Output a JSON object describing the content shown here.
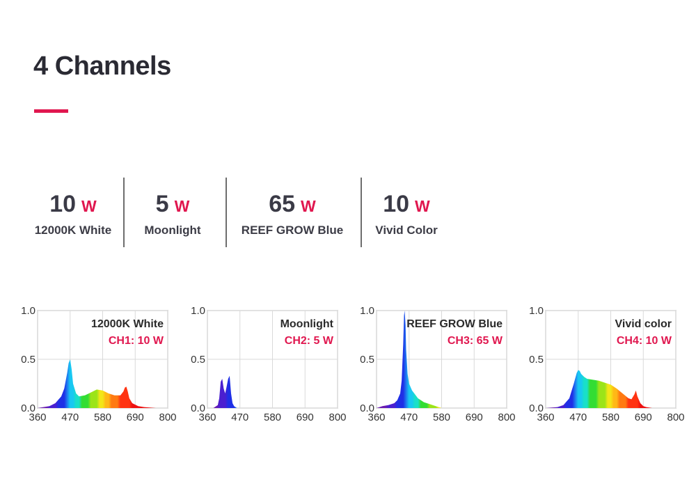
{
  "header": {
    "title": "4 Channels",
    "accent_color": "#e0174f"
  },
  "stats": [
    {
      "value": "10",
      "unit": "W",
      "label": "12000K White"
    },
    {
      "value": "5",
      "unit": "W",
      "label": "Moonlight"
    },
    {
      "value": "65",
      "unit": "W",
      "label": "REEF GROW Blue"
    },
    {
      "value": "10",
      "unit": "W",
      "label": "Vivid Color"
    }
  ],
  "chart_data": [
    {
      "type": "area",
      "title": "12000K White",
      "subtitle": "CH1: 10 W",
      "xlabel": "",
      "ylabel": "",
      "xlim": [
        360,
        800
      ],
      "ylim": [
        0,
        1
      ],
      "x_ticks": [
        "360",
        "470",
        "580",
        "690",
        "800"
      ],
      "y_ticks": [
        "0.0",
        "0.5",
        "1.0"
      ],
      "grid": true,
      "x": [
        360,
        380,
        400,
        420,
        440,
        450,
        460,
        465,
        470,
        475,
        480,
        490,
        500,
        520,
        540,
        560,
        580,
        600,
        620,
        640,
        650,
        655,
        660,
        665,
        670,
        680,
        700,
        720,
        760,
        800
      ],
      "y": [
        0.0,
        0.01,
        0.02,
        0.05,
        0.12,
        0.2,
        0.36,
        0.46,
        0.5,
        0.4,
        0.25,
        0.15,
        0.12,
        0.13,
        0.16,
        0.19,
        0.18,
        0.15,
        0.13,
        0.13,
        0.17,
        0.21,
        0.22,
        0.17,
        0.1,
        0.05,
        0.02,
        0.01,
        0.0,
        0.0
      ]
    },
    {
      "type": "area",
      "title": "Moonlight",
      "subtitle": "CH2: 5 W",
      "xlabel": "",
      "ylabel": "",
      "xlim": [
        360,
        800
      ],
      "ylim": [
        0,
        1
      ],
      "x_ticks": [
        "360",
        "470",
        "580",
        "690",
        "800"
      ],
      "y_ticks": [
        "0.0",
        "0.5",
        "1.0"
      ],
      "grid": true,
      "x": [
        360,
        380,
        395,
        400,
        405,
        410,
        415,
        420,
        425,
        430,
        435,
        440,
        445,
        450,
        460,
        480,
        800
      ],
      "y": [
        0.0,
        0.0,
        0.03,
        0.1,
        0.27,
        0.3,
        0.2,
        0.15,
        0.22,
        0.3,
        0.33,
        0.15,
        0.05,
        0.02,
        0.0,
        0.0,
        0.0
      ]
    },
    {
      "type": "area",
      "title": "REEF GROW Blue",
      "subtitle": "CH3: 65 W",
      "xlabel": "",
      "ylabel": "",
      "xlim": [
        360,
        800
      ],
      "ylim": [
        0,
        1
      ],
      "x_ticks": [
        "360",
        "470",
        "580",
        "690",
        "800"
      ],
      "y_ticks": [
        "0.0",
        "0.5",
        "1.0"
      ],
      "grid": true,
      "x": [
        360,
        380,
        400,
        420,
        430,
        440,
        445,
        450,
        453,
        455,
        458,
        460,
        465,
        470,
        480,
        490,
        500,
        520,
        540,
        560,
        580,
        620,
        800
      ],
      "y": [
        0.0,
        0.02,
        0.03,
        0.05,
        0.08,
        0.15,
        0.28,
        0.65,
        0.95,
        1.0,
        0.85,
        0.6,
        0.35,
        0.25,
        0.18,
        0.14,
        0.1,
        0.06,
        0.04,
        0.02,
        0.0,
        0.0,
        0.0
      ]
    },
    {
      "type": "area",
      "title": "Vivid color",
      "subtitle": "CH4: 10 W",
      "xlabel": "",
      "ylabel": "",
      "xlim": [
        360,
        800
      ],
      "ylim": [
        0,
        1
      ],
      "x_ticks": [
        "360",
        "470",
        "580",
        "690",
        "800"
      ],
      "y_ticks": [
        "0.0",
        "0.5",
        "1.0"
      ],
      "grid": true,
      "x": [
        360,
        400,
        420,
        440,
        455,
        465,
        470,
        475,
        480,
        490,
        500,
        520,
        540,
        560,
        580,
        600,
        620,
        640,
        650,
        660,
        665,
        670,
        680,
        690,
        700,
        720,
        800
      ],
      "y": [
        0.0,
        0.01,
        0.03,
        0.1,
        0.25,
        0.36,
        0.39,
        0.38,
        0.35,
        0.32,
        0.3,
        0.29,
        0.28,
        0.26,
        0.24,
        0.2,
        0.15,
        0.1,
        0.09,
        0.14,
        0.18,
        0.12,
        0.05,
        0.02,
        0.01,
        0.0,
        0.0
      ]
    }
  ]
}
